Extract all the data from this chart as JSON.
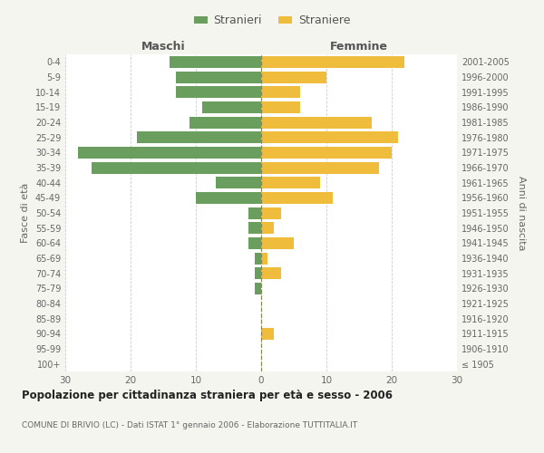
{
  "age_groups": [
    "100+",
    "95-99",
    "90-94",
    "85-89",
    "80-84",
    "75-79",
    "70-74",
    "65-69",
    "60-64",
    "55-59",
    "50-54",
    "45-49",
    "40-44",
    "35-39",
    "30-34",
    "25-29",
    "20-24",
    "15-19",
    "10-14",
    "5-9",
    "0-4"
  ],
  "birth_years": [
    "≤ 1905",
    "1906-1910",
    "1911-1915",
    "1916-1920",
    "1921-1925",
    "1926-1930",
    "1931-1935",
    "1936-1940",
    "1941-1945",
    "1946-1950",
    "1951-1955",
    "1956-1960",
    "1961-1965",
    "1966-1970",
    "1971-1975",
    "1976-1980",
    "1981-1985",
    "1986-1990",
    "1991-1995",
    "1996-2000",
    "2001-2005"
  ],
  "males": [
    0,
    0,
    0,
    0,
    0,
    1,
    1,
    1,
    2,
    2,
    2,
    10,
    7,
    26,
    28,
    19,
    11,
    9,
    13,
    13,
    14
  ],
  "females": [
    0,
    0,
    2,
    0,
    0,
    0,
    3,
    1,
    5,
    2,
    3,
    11,
    9,
    18,
    20,
    21,
    17,
    6,
    6,
    10,
    22
  ],
  "male_color": "#6a9e5e",
  "female_color": "#f0bc3c",
  "background_color": "#f5f5f0",
  "plot_bg_color": "#ffffff",
  "grid_color": "#cccccc",
  "title": "Popolazione per cittadinanza straniera per età e sesso - 2006",
  "subtitle": "COMUNE DI BRIVIO (LC) - Dati ISTAT 1° gennaio 2006 - Elaborazione TUTTITALIA.IT",
  "xlabel_left": "Maschi",
  "xlabel_right": "Femmine",
  "ylabel_left": "Fasce di età",
  "ylabel_right": "Anni di nascita",
  "xlim": 30,
  "legend_stranieri": "Stranieri",
  "legend_straniere": "Straniere"
}
